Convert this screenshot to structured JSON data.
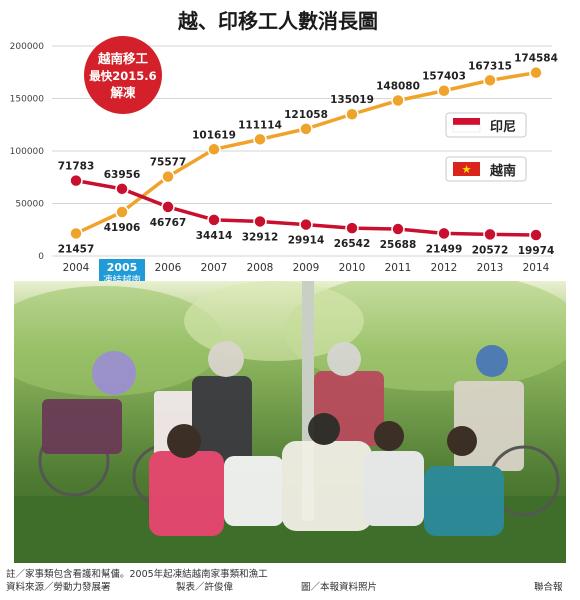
{
  "chart_data": {
    "type": "line",
    "title": "越、印移工人數消長圖",
    "x": [
      "2004",
      "2005",
      "2006",
      "2007",
      "2008",
      "2009",
      "2010",
      "2011",
      "2012",
      "2013",
      "2014"
    ],
    "ylim": [
      0,
      200000
    ],
    "yticks": [
      "0",
      "50000",
      "100000",
      "150000",
      "200000"
    ],
    "grid": true,
    "legend_position": "right",
    "highlight": {
      "year": "2005",
      "note": "凍結越南"
    },
    "callout": {
      "line1": "越南移工",
      "line2": "最快2015.6",
      "line3": "解凍"
    },
    "series": [
      {
        "name": "印尼",
        "color": "#f0a32a",
        "values": [
          21457,
          41906,
          75577,
          101619,
          111114,
          121058,
          135019,
          148080,
          157403,
          167315,
          174584
        ],
        "labels": [
          "21457",
          "41906",
          "75577",
          "101619",
          "111114",
          "121058",
          "135019",
          "148080",
          "157403",
          "167315",
          "174584"
        ]
      },
      {
        "name": "越南",
        "color": "#c8102e",
        "values": [
          71783,
          63956,
          46767,
          34414,
          32912,
          29914,
          26542,
          25688,
          21499,
          20572,
          19974
        ],
        "labels": [
          "71783",
          "63956",
          "46767",
          "34414",
          "32912",
          "29914",
          "26542",
          "25688",
          "21499",
          "20572",
          "19974"
        ]
      }
    ]
  },
  "footer": {
    "note": "註／家事類包含看護和幫傭。2005年起凍結越南家事類和漁工",
    "source": "資料來源／勞動力發展署",
    "producer": "製表／許俊偉",
    "photo_credit": "圖／本報資料照片",
    "publisher": "聯合報"
  }
}
